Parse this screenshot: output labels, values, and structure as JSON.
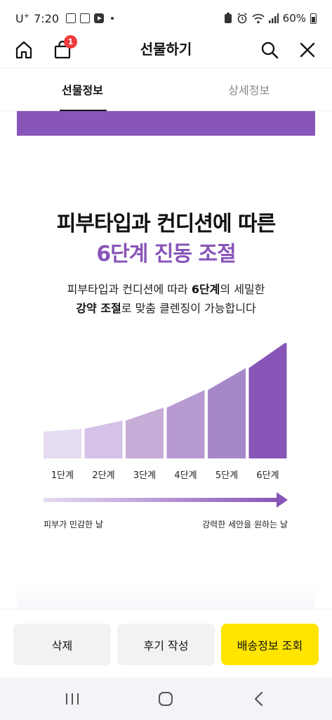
{
  "status_bar": {
    "carrier": "U",
    "carrier_sup": "+",
    "time": "7:20",
    "battery": "60%"
  },
  "header": {
    "title": "선물하기",
    "cart_badge": "1",
    "icons": [
      "home-icon",
      "shopping-bag-icon",
      "search-icon",
      "close-icon"
    ]
  },
  "tabs": [
    {
      "label": "선물정보",
      "active": true
    },
    {
      "label": "상세정보",
      "active": false
    }
  ],
  "content": {
    "headline_line1": "피부타입과 컨디션에 따른",
    "headline_line2": "6단계 진동 조절",
    "desc_line1_a": "피부타입과 컨디션에 따라 ",
    "desc_line1_b": "6단계",
    "desc_line1_c": "의 세밀한",
    "desc_line2_a": "강약 조절",
    "desc_line2_b": "로 맞춤 클렌징이 가능합니다",
    "accent_color": "#8855b8"
  },
  "chart_data": {
    "type": "bar",
    "categories": [
      "1단계",
      "2단계",
      "3단계",
      "4단계",
      "5단계",
      "6단계"
    ],
    "values": [
      1,
      2,
      3,
      4,
      5,
      6
    ],
    "bar_colors": [
      "#e6dcf2",
      "#d4c2e8",
      "#c6acd6",
      "#b89ad2",
      "#a688c8",
      "#8855b8"
    ],
    "arrow_left_label": "피부가 민감한 날",
    "arrow_right_label": "강력한 세안을 원하는 날"
  },
  "actions": {
    "delete": "삭제",
    "write_review": "후기 작성",
    "shipping_info": "배송정보 조회",
    "highlight_color": "#ffe500"
  },
  "navbar": {
    "icons": [
      "recent-apps-icon",
      "home-circle-icon",
      "back-icon"
    ]
  }
}
